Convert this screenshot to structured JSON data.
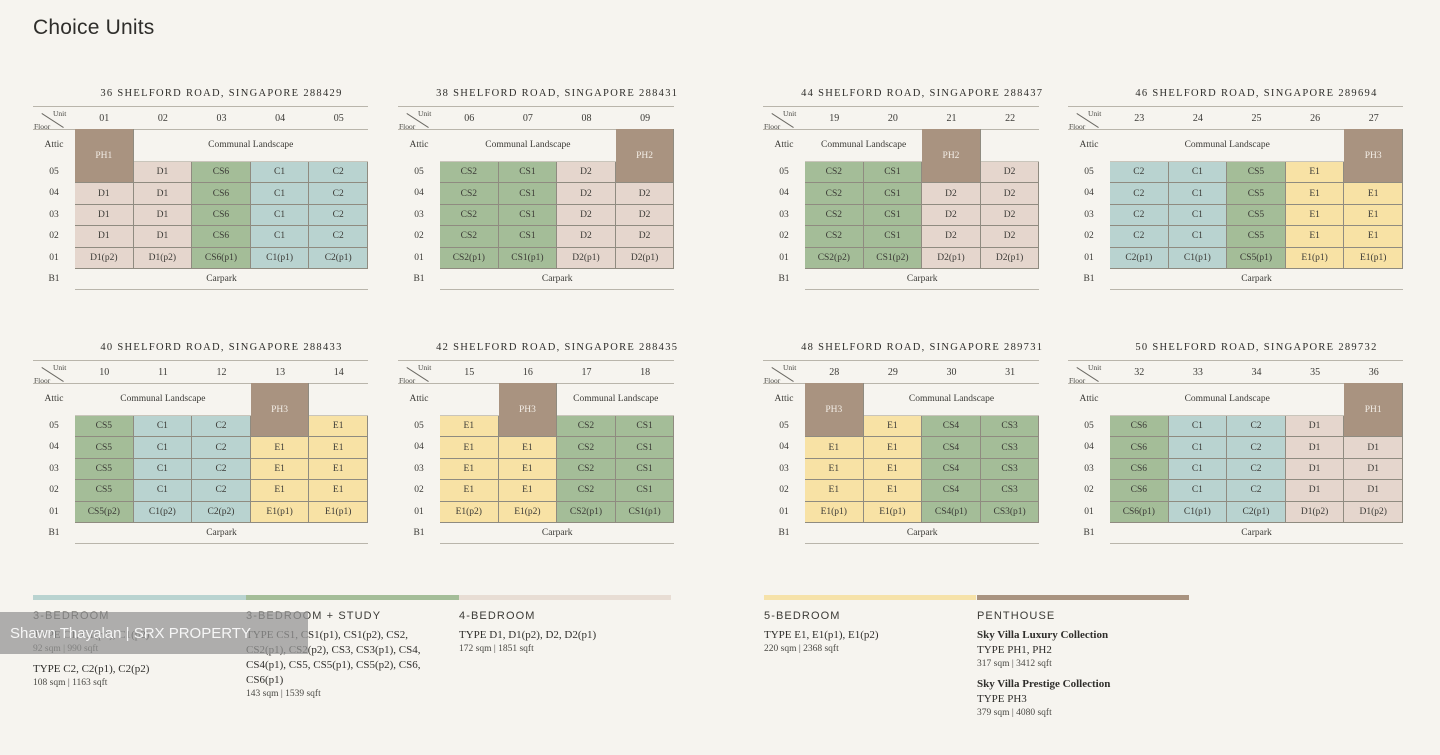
{
  "title": "Choice Units",
  "labels": {
    "unit": "Unit",
    "floor": "Floor",
    "attic": "Attic",
    "b1": "B1",
    "carpark": "Carpark",
    "landscape": "Communal Landscape"
  },
  "colors": {
    "CS": "#a4bd98",
    "C": "#b9d3d0",
    "D": "#e5d6cd",
    "E": "#f8e2a5",
    "PH": "#a99380"
  },
  "floors": [
    "05",
    "04",
    "03",
    "02",
    "01"
  ],
  "blocks": [
    {
      "address": "36 SHELFORD ROAD, SINGAPORE 288429",
      "units": [
        "01",
        "02",
        "03",
        "04",
        "05"
      ],
      "attic": [
        {
          "t": "PH1",
          "span": 1,
          "cls": "PH"
        },
        {
          "t": "Communal Landscape",
          "span": 4,
          "cls": "L"
        }
      ],
      "rows": [
        [
          "",
          "D1",
          "CS6",
          "C1",
          "C2"
        ],
        [
          "D1",
          "D1",
          "CS6",
          "C1",
          "C2"
        ],
        [
          "D1",
          "D1",
          "CS6",
          "C1",
          "C2"
        ],
        [
          "D1",
          "D1",
          "CS6",
          "C1",
          "C2"
        ],
        [
          "D1(p2)",
          "D1(p2)",
          "CS6(p1)",
          "C1(p1)",
          "C2(p1)"
        ]
      ]
    },
    {
      "address": "38 SHELFORD ROAD, SINGAPORE 288431",
      "units": [
        "06",
        "07",
        "08",
        "09"
      ],
      "attic": [
        {
          "t": "Communal Landscape",
          "span": 3,
          "cls": "L"
        },
        {
          "t": "PH2",
          "span": 1,
          "cls": "PH"
        }
      ],
      "rows": [
        [
          "CS2",
          "CS1",
          "D2",
          ""
        ],
        [
          "CS2",
          "CS1",
          "D2",
          "D2"
        ],
        [
          "CS2",
          "CS1",
          "D2",
          "D2"
        ],
        [
          "CS2",
          "CS1",
          "D2",
          "D2"
        ],
        [
          "CS2(p1)",
          "CS1(p1)",
          "D2(p1)",
          "D2(p1)"
        ]
      ]
    },
    {
      "address": "44 SHELFORD ROAD, SINGAPORE 288437",
      "units": [
        "19",
        "20",
        "21",
        "22"
      ],
      "attic": [
        {
          "t": "Communal Landscape",
          "span": 2,
          "cls": "L"
        },
        {
          "t": "PH2",
          "span": 1,
          "cls": "PH"
        },
        {
          "t": "",
          "span": 1,
          "cls": "L"
        }
      ],
      "rows": [
        [
          "CS2",
          "CS1",
          "",
          "D2"
        ],
        [
          "CS2",
          "CS1",
          "D2",
          "D2"
        ],
        [
          "CS2",
          "CS1",
          "D2",
          "D2"
        ],
        [
          "CS2",
          "CS1",
          "D2",
          "D2"
        ],
        [
          "CS2(p2)",
          "CS1(p2)",
          "D2(p1)",
          "D2(p1)"
        ]
      ]
    },
    {
      "address": "46 SHELFORD ROAD, SINGAPORE 289694",
      "units": [
        "23",
        "24",
        "25",
        "26",
        "27"
      ],
      "attic": [
        {
          "t": "Communal Landscape",
          "span": 4,
          "cls": "L"
        },
        {
          "t": "PH3",
          "span": 1,
          "cls": "PH"
        }
      ],
      "rows": [
        [
          "C2",
          "C1",
          "CS5",
          "E1",
          ""
        ],
        [
          "C2",
          "C1",
          "CS5",
          "E1",
          "E1"
        ],
        [
          "C2",
          "C1",
          "CS5",
          "E1",
          "E1"
        ],
        [
          "C2",
          "C1",
          "CS5",
          "E1",
          "E1"
        ],
        [
          "C2(p1)",
          "C1(p1)",
          "CS5(p1)",
          "E1(p1)",
          "E1(p1)"
        ]
      ]
    },
    {
      "address": "40 SHELFORD ROAD, SINGAPORE 288433",
      "units": [
        "10",
        "11",
        "12",
        "13",
        "14"
      ],
      "attic": [
        {
          "t": "Communal Landscape",
          "span": 3,
          "cls": "L"
        },
        {
          "t": "PH3",
          "span": 1,
          "cls": "PH"
        },
        {
          "t": "",
          "span": 1,
          "cls": "L"
        }
      ],
      "rows": [
        [
          "CS5",
          "C1",
          "C2",
          "",
          "E1"
        ],
        [
          "CS5",
          "C1",
          "C2",
          "E1",
          "E1"
        ],
        [
          "CS5",
          "C1",
          "C2",
          "E1",
          "E1"
        ],
        [
          "CS5",
          "C1",
          "C2",
          "E1",
          "E1"
        ],
        [
          "CS5(p2)",
          "C1(p2)",
          "C2(p2)",
          "E1(p1)",
          "E1(p1)"
        ]
      ]
    },
    {
      "address": "42 SHELFORD ROAD, SINGAPORE 288435",
      "units": [
        "15",
        "16",
        "17",
        "18"
      ],
      "attic": [
        {
          "t": "",
          "span": 1,
          "cls": "L"
        },
        {
          "t": "PH3",
          "span": 1,
          "cls": "PH"
        },
        {
          "t": "Communal Landscape",
          "span": 2,
          "cls": "L"
        }
      ],
      "rows": [
        [
          "E1",
          "",
          "CS2",
          "CS1"
        ],
        [
          "E1",
          "E1",
          "CS2",
          "CS1"
        ],
        [
          "E1",
          "E1",
          "CS2",
          "CS1"
        ],
        [
          "E1",
          "E1",
          "CS2",
          "CS1"
        ],
        [
          "E1(p2)",
          "E1(p2)",
          "CS2(p1)",
          "CS1(p1)"
        ]
      ]
    },
    {
      "address": "48 SHELFORD ROAD, SINGAPORE 289731",
      "units": [
        "28",
        "29",
        "30",
        "31"
      ],
      "attic": [
        {
          "t": "PH3",
          "span": 1,
          "cls": "PH"
        },
        {
          "t": "Communal Landscape",
          "span": 3,
          "cls": "L"
        }
      ],
      "rows": [
        [
          "",
          "E1",
          "CS4",
          "CS3"
        ],
        [
          "E1",
          "E1",
          "CS4",
          "CS3"
        ],
        [
          "E1",
          "E1",
          "CS4",
          "CS3"
        ],
        [
          "E1",
          "E1",
          "CS4",
          "CS3"
        ],
        [
          "E1(p1)",
          "E1(p1)",
          "CS4(p1)",
          "CS3(p1)"
        ]
      ]
    },
    {
      "address": "50 SHELFORD ROAD, SINGAPORE 289732",
      "units": [
        "32",
        "33",
        "34",
        "35",
        "36"
      ],
      "attic": [
        {
          "t": "Communal Landscape",
          "span": 4,
          "cls": "L"
        },
        {
          "t": "PH1",
          "span": 1,
          "cls": "PH"
        }
      ],
      "rows": [
        [
          "CS6",
          "C1",
          "C2",
          "D1",
          ""
        ],
        [
          "CS6",
          "C1",
          "C2",
          "D1",
          "D1"
        ],
        [
          "CS6",
          "C1",
          "C2",
          "D1",
          "D1"
        ],
        [
          "CS6",
          "C1",
          "C2",
          "D1",
          "D1"
        ],
        [
          "CS6(p1)",
          "C1(p1)",
          "C2(p1)",
          "D1(p2)",
          "D1(p2)"
        ]
      ]
    }
  ],
  "legend": [
    {
      "color": "#b9d3d0",
      "title": "3-BEDROOM",
      "items": [
        {
          "type": "TYPE C1, C1(p1), C1(p2)",
          "size": "92 sqm | 990 sqft"
        },
        {
          "type": "TYPE C2, C2(p1), C2(p2)",
          "size": "108 sqm | 1163 sqft"
        }
      ]
    },
    {
      "color": "#a4bd98",
      "title": "3-BEDROOM + STUDY",
      "items": [
        {
          "type": "TYPE CS1, CS1(p1), CS1(p2), CS2, CS2(p1), CS2(p2), CS3, CS3(p1), CS4, CS4(p1), CS5, CS5(p1), CS5(p2), CS6, CS6(p1)",
          "size": "143 sqm | 1539 sqft"
        }
      ]
    },
    {
      "color": "#e8ddd4",
      "title": "4-BEDROOM",
      "items": [
        {
          "type": "TYPE D1, D1(p2), D2, D2(p1)",
          "size": "172 sqm | 1851 sqft"
        }
      ]
    },
    {
      "color": "#f6e2a9",
      "title": "5-BEDROOM",
      "items": [
        {
          "type": "TYPE E1, E1(p1), E1(p2)",
          "size": "220 sqm | 2368 sqft"
        }
      ]
    },
    {
      "color": "#a99380",
      "title": "PENTHOUSE",
      "items": [
        {
          "collection": "Sky Villa Luxury Collection",
          "type": "TYPE PH1, PH2",
          "size": "317 sqm | 3412 sqft"
        },
        {
          "collection": "Sky Villa Prestige Collection",
          "type": "TYPE PH3",
          "size": "379 sqm | 4080 sqft"
        }
      ]
    }
  ],
  "watermark": "Shawn Thayalan | SRX PROPERTY"
}
